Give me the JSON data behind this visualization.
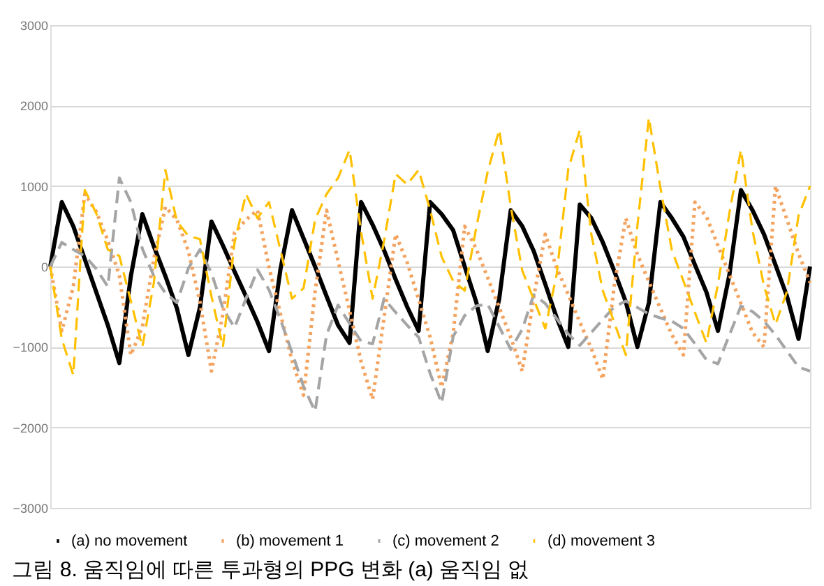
{
  "chart_data": {
    "type": "line",
    "ylim": [
      -3000,
      3000
    ],
    "yticks": [
      -3000,
      -2000,
      -1000,
      0,
      1000,
      2000,
      3000
    ],
    "grid": "y",
    "legend": "bottom",
    "tick_labels": "y",
    "annotations": [
      "그림 8. 움직임에 따른 투과형의 PPG 변화 (a) 움직임 없"
    ],
    "categories": [
      null,
      null,
      null,
      null,
      null,
      null,
      null,
      null,
      null,
      null,
      null,
      null,
      null,
      null,
      null,
      null,
      null,
      null,
      null,
      null,
      null,
      null,
      null,
      null,
      null,
      null,
      null,
      null,
      null,
      null,
      null,
      null,
      null,
      null,
      null,
      null,
      null,
      null,
      null,
      null,
      null,
      null,
      null,
      null,
      null,
      null,
      null,
      null,
      null,
      null,
      null,
      null,
      null,
      null,
      null,
      null,
      null,
      null,
      null,
      null,
      null,
      null,
      null,
      null,
      null,
      null,
      null
    ],
    "series": [
      {
        "name": "(a) no movement",
        "color": "#000000",
        "line_style": "solid",
        "values": [
          0,
          800,
          500,
          90,
          -320,
          -730,
          -1200,
          -120,
          650,
          250,
          -120,
          -520,
          -1100,
          -510,
          560,
          260,
          -60,
          -370,
          -690,
          -1050,
          -30,
          700,
          350,
          0,
          -370,
          -730,
          -950,
          800,
          520,
          200,
          -160,
          -500,
          -800,
          800,
          650,
          450,
          0,
          -440,
          -1050,
          -400,
          700,
          500,
          190,
          -220,
          -640,
          -1000,
          770,
          600,
          300,
          -60,
          -440,
          -1000,
          -450,
          800,
          600,
          370,
          20,
          -320,
          -800,
          -100,
          950,
          700,
          400,
          20,
          -370,
          -900,
          0
        ]
      },
      {
        "name": "(b) movement 1",
        "color": "#f4a460",
        "line_style": "dotted",
        "values": [
          0,
          -800,
          -250,
          900,
          680,
          320,
          -110,
          -1100,
          -750,
          100,
          740,
          580,
          190,
          -440,
          -1300,
          -590,
          420,
          580,
          700,
          -10,
          -590,
          -1170,
          -1600,
          -320,
          700,
          70,
          -550,
          -1180,
          -1650,
          -630,
          400,
          50,
          -410,
          -880,
          -1500,
          -830,
          500,
          220,
          -140,
          -510,
          -880,
          -1300,
          -380,
          400,
          -20,
          -350,
          -690,
          -1020,
          -1400,
          -230,
          600,
          150,
          -190,
          -520,
          -850,
          -1100,
          800,
          620,
          260,
          -100,
          -460,
          -820,
          -1000,
          1000,
          580,
          160,
          -200
        ]
      },
      {
        "name": "(c) movement 2",
        "color": "#a5a5a5",
        "line_style": "dashed",
        "values": [
          0,
          300,
          210,
          130,
          -30,
          -250,
          1100,
          800,
          220,
          -120,
          -330,
          -450,
          -20,
          210,
          -80,
          -520,
          -760,
          -400,
          -40,
          -290,
          -660,
          -1070,
          -1490,
          -1800,
          -850,
          -480,
          -710,
          -930,
          -960,
          -400,
          -570,
          -730,
          -880,
          -1330,
          -1700,
          -870,
          -610,
          -490,
          -470,
          -750,
          -1030,
          -780,
          -350,
          -460,
          -650,
          -840,
          -980,
          -820,
          -660,
          -500,
          -430,
          -510,
          -590,
          -640,
          -680,
          -770,
          -960,
          -1160,
          -1210,
          -850,
          -490,
          -560,
          -680,
          -850,
          -1050,
          -1250,
          -1300
        ]
      },
      {
        "name": "(d) movement 3",
        "color": "#ffc000",
        "line_style": "dashed",
        "values": [
          0,
          -900,
          -1350,
          950,
          660,
          210,
          130,
          -430,
          -1000,
          -200,
          1200,
          560,
          380,
          340,
          -370,
          -1000,
          290,
          900,
          600,
          800,
          200,
          -400,
          -270,
          580,
          900,
          1100,
          1450,
          430,
          -400,
          320,
          1150,
          1020,
          1200,
          700,
          120,
          -180,
          -300,
          480,
          1180,
          1700,
          750,
          -50,
          -410,
          -770,
          -90,
          1210,
          1700,
          400,
          -300,
          -700,
          -1100,
          500,
          1850,
          980,
          200,
          -180,
          -570,
          -950,
          -220,
          670,
          1450,
          450,
          -240,
          -720,
          -310,
          630,
          1000
        ]
      }
    ]
  }
}
